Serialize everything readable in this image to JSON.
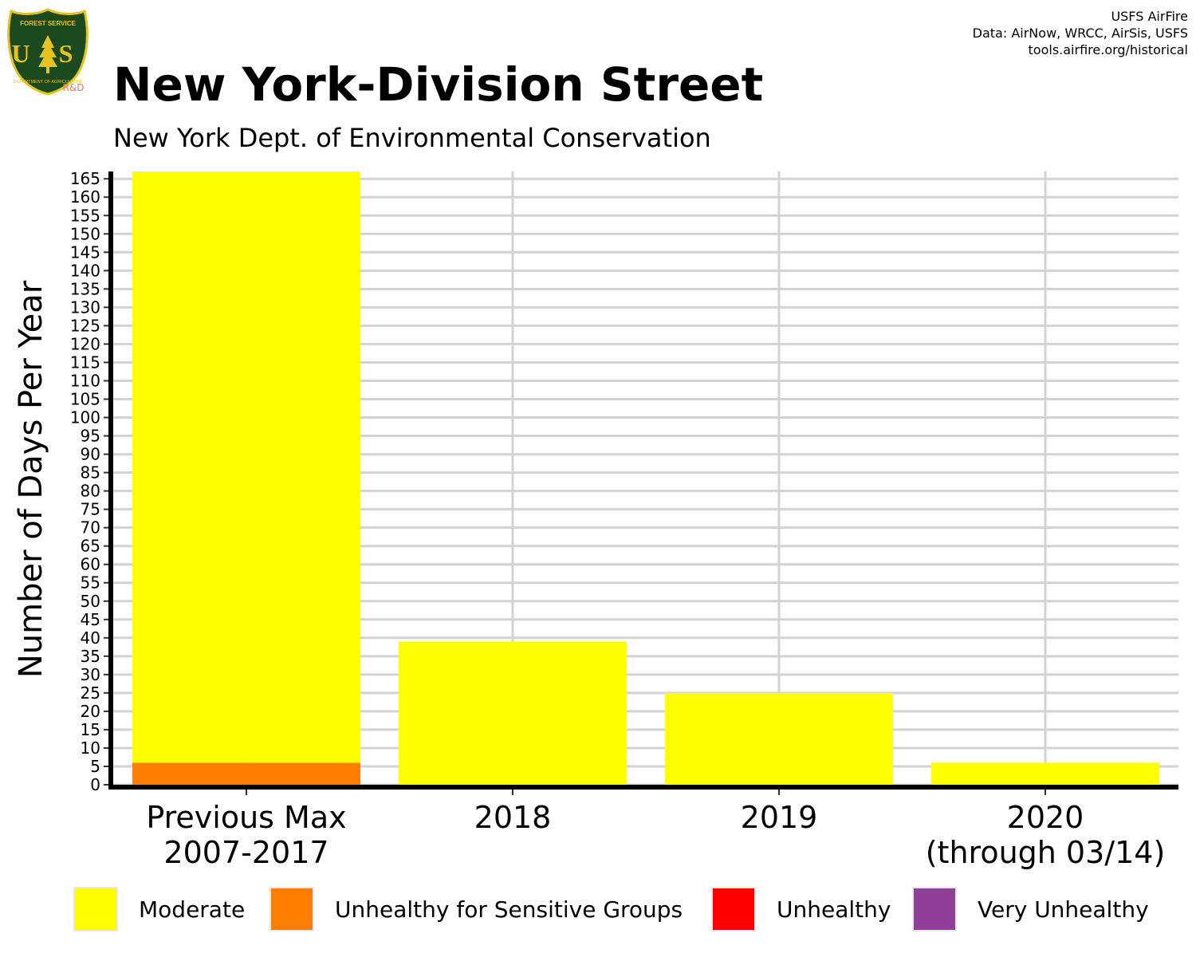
{
  "header": {
    "title": "New York-Division Street",
    "subtitle": "New York Dept. of Environmental Conservation",
    "credits": [
      "USFS AirFire",
      "Data: AirNow, WRCC, AirSis, USFS",
      "tools.airfire.org/historical"
    ],
    "logo": {
      "icon": "usfs-shield-icon",
      "top_text": "FOREST SERVICE",
      "letters": "U S",
      "bottom_text": "DEPARTMENT OF AGRICULTURE",
      "badge": "R&D"
    }
  },
  "colors": {
    "Moderate": "#ffff00",
    "Unhealthy for Sensitive Groups": "#ff7e00",
    "Unhealthy": "#ff0000",
    "Very Unhealthy": "#8f3f97",
    "grid": "#d3d3d3",
    "axis": "#000000",
    "shield_green": "#1b4a1e",
    "shield_gold": "#e8c21f"
  },
  "legend": {
    "position": "bottom",
    "items": [
      {
        "label": "Moderate",
        "color": "#ffff00"
      },
      {
        "label": "Unhealthy for Sensitive Groups",
        "color": "#ff7e00"
      },
      {
        "label": "Unhealthy",
        "color": "#ff0000"
      },
      {
        "label": "Very Unhealthy",
        "color": "#8f3f97"
      }
    ]
  },
  "chart_data": {
    "type": "bar",
    "stacked": true,
    "title": "New York-Division Street",
    "subtitle": "New York Dept. of Environmental Conservation",
    "xlabel": "",
    "ylabel": "Number of Days Per Year",
    "categories": [
      [
        "Previous Max",
        "2007-2017"
      ],
      [
        "2018"
      ],
      [
        "2019"
      ],
      [
        "2020",
        "(through 03/14)"
      ]
    ],
    "series": [
      {
        "name": "Unhealthy for Sensitive Groups",
        "values": [
          6,
          0,
          0,
          0
        ]
      },
      {
        "name": "Moderate",
        "values": [
          161,
          39,
          25,
          6
        ]
      },
      {
        "name": "Unhealthy",
        "values": [
          0,
          0,
          0,
          0
        ]
      },
      {
        "name": "Very Unhealthy",
        "values": [
          0,
          0,
          0,
          0
        ]
      }
    ],
    "ylim": [
      0,
      167
    ],
    "yticks": [
      0,
      5,
      10,
      15,
      20,
      25,
      30,
      35,
      40,
      45,
      50,
      55,
      60,
      65,
      70,
      75,
      80,
      85,
      90,
      95,
      100,
      105,
      110,
      115,
      120,
      125,
      130,
      135,
      140,
      145,
      150,
      155,
      160,
      165
    ],
    "grid": true,
    "legend": "bottom"
  }
}
